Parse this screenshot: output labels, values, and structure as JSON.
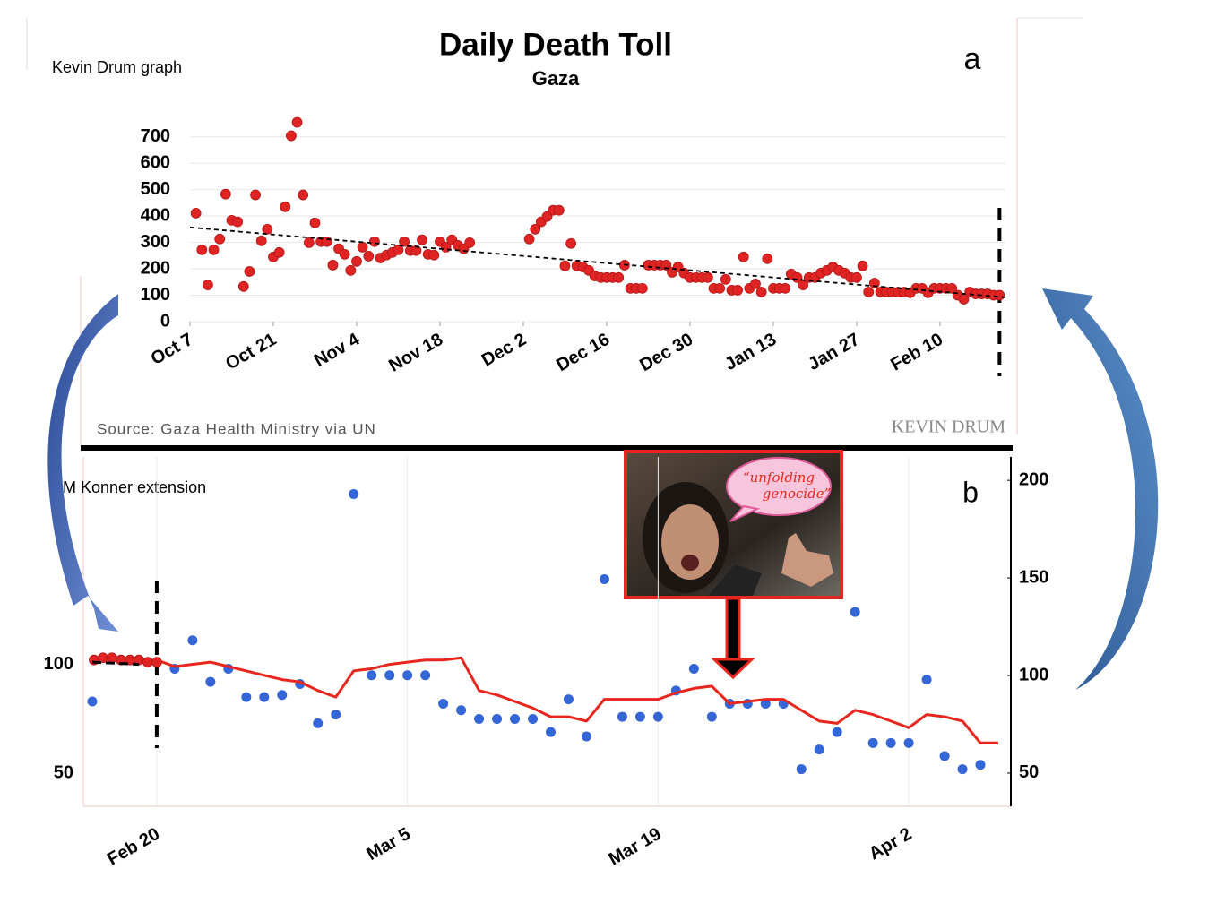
{
  "chart_data": [
    {
      "type": "scatter",
      "title": "Daily Death Toll",
      "subtitle": "Gaza",
      "panel_label": "a",
      "note": "Kevin Drum graph",
      "source": "Source: Gaza Health Ministry via UN",
      "watermark": "KEVIN DRUM",
      "xlim": [
        0,
        137
      ],
      "ylim": [
        0,
        750
      ],
      "xticks": [
        {
          "value": 0,
          "label": "Oct 7"
        },
        {
          "value": 14,
          "label": "Oct 21"
        },
        {
          "value": 28,
          "label": "Nov 4"
        },
        {
          "value": 42,
          "label": "Nov 18"
        },
        {
          "value": 56,
          "label": "Dec 2"
        },
        {
          "value": 70,
          "label": "Dec 16"
        },
        {
          "value": 84,
          "label": "Dec 30"
        },
        {
          "value": 98,
          "label": "Jan 13"
        },
        {
          "value": 112,
          "label": "Jan 27"
        },
        {
          "value": 126,
          "label": "Feb 10"
        }
      ],
      "yticks": [
        0,
        100,
        200,
        300,
        400,
        500,
        600,
        700
      ],
      "grid": true,
      "series": [
        {
          "type": "scatter",
          "color": "#e02424",
          "x": [
            1,
            2,
            3,
            4,
            5,
            6,
            7,
            8,
            9,
            10,
            11,
            12,
            13,
            14,
            15,
            16,
            17,
            18,
            19,
            20,
            21,
            22,
            23,
            24,
            25,
            26,
            27,
            28,
            29,
            30,
            31,
            32,
            33,
            34,
            35,
            36,
            37,
            38,
            39,
            40,
            41,
            42,
            43,
            44,
            45,
            46,
            47,
            57,
            58,
            59,
            60,
            61,
            62,
            63,
            64,
            65,
            66,
            67,
            68,
            69,
            70,
            71,
            72,
            73,
            74,
            75,
            76,
            77,
            78,
            79,
            80,
            81,
            82,
            83,
            84,
            85,
            86,
            87,
            88,
            89,
            90,
            91,
            92,
            93,
            94,
            95,
            96,
            97,
            98,
            99,
            100,
            101,
            102,
            103,
            104,
            105,
            106,
            107,
            108,
            109,
            110,
            111,
            112,
            113,
            114,
            115,
            116,
            117,
            118,
            119,
            120,
            121,
            122,
            123,
            124,
            125,
            126,
            127,
            128,
            129,
            130,
            131,
            132,
            133,
            134,
            135,
            136
          ],
          "values": [
            411,
            272,
            139,
            272,
            313,
            483,
            384,
            378,
            133,
            190,
            480,
            306,
            350,
            245,
            262,
            435,
            704,
            755,
            480,
            299,
            374,
            303,
            303,
            214,
            276,
            255,
            194,
            228,
            282,
            248,
            303,
            241,
            252,
            262,
            272,
            303,
            269,
            269,
            310,
            255,
            252,
            303,
            282,
            310,
            289,
            276,
            299,
            313,
            350,
            378,
            398,
            422,
            422,
            211,
            296,
            211,
            207,
            194,
            173,
            167,
            167,
            167,
            167,
            214,
            126,
            126,
            126,
            214,
            214,
            214,
            214,
            187,
            207,
            184,
            167,
            167,
            167,
            167,
            126,
            126,
            160,
            119,
            119,
            245,
            126,
            143,
            112,
            238,
            126,
            126,
            126,
            180,
            167,
            139,
            167,
            167,
            184,
            194,
            207,
            194,
            184,
            167,
            167,
            211,
            112,
            146,
            112,
            112,
            112,
            112,
            112,
            109,
            126,
            126,
            109,
            126,
            126,
            126,
            126,
            100,
            85,
            112,
            105,
            105,
            105,
            100,
            100
          ]
        }
      ],
      "trend": {
        "x": [
          0,
          137
        ],
        "values": [
          357,
          92
        ]
      },
      "reference_line": {
        "x": 136
      }
    },
    {
      "type": "combo",
      "panel_label": "b",
      "note": "M Konner extension",
      "annotation": "“unfolding genocide”",
      "xlim": [
        -4.1,
        47.7
      ],
      "ylim": [
        35,
        195
      ],
      "yticks": [
        50,
        100
      ],
      "y2lim": [
        33,
        212
      ],
      "y2ticks": [
        50,
        100,
        150,
        200
      ],
      "xticks": [
        {
          "value": 0,
          "label": "Feb 20"
        },
        {
          "value": 14,
          "label": "Mar 5"
        },
        {
          "value": 28,
          "label": "Mar 19"
        },
        {
          "value": 42,
          "label": "Apr 2"
        }
      ],
      "grid": true,
      "series": [
        {
          "type": "scatter",
          "color": "#3566d8",
          "x": [
            -3.6,
            0,
            1,
            2,
            3,
            4,
            5,
            6,
            7,
            8,
            9,
            10,
            11,
            12,
            13,
            14,
            15,
            16,
            17,
            18,
            19,
            20,
            21,
            22,
            23,
            24,
            25,
            26,
            27,
            28,
            29,
            30,
            31,
            32,
            33,
            34,
            35,
            36,
            37,
            38,
            39,
            40,
            41,
            42,
            43,
            44,
            45,
            46
          ],
          "values": [
            83,
            101,
            98,
            111,
            92,
            98,
            85,
            85,
            86,
            91,
            73,
            77,
            178,
            95,
            95,
            95,
            95,
            82,
            79,
            75,
            75,
            75,
            75,
            69,
            84,
            67,
            139,
            76,
            76,
            76,
            88,
            98,
            76,
            82,
            82,
            82,
            82,
            52,
            61,
            69,
            124,
            64,
            64,
            64,
            93,
            58,
            52,
            54
          ]
        },
        {
          "type": "line",
          "color": "#e8261e",
          "x": [
            0,
            1,
            3,
            4,
            5,
            6,
            7,
            8,
            9,
            10,
            11,
            12,
            13,
            14,
            15,
            16,
            17,
            18,
            19,
            20,
            21,
            22,
            23,
            24,
            25,
            26,
            27,
            28,
            29,
            30,
            31,
            32,
            33,
            34,
            35,
            36,
            37,
            38,
            39,
            40,
            41,
            42,
            43,
            44,
            45,
            46,
            47
          ],
          "values": [
            102,
            99,
            101,
            99,
            97,
            95,
            93,
            92,
            88,
            85,
            97,
            98,
            100,
            101,
            102,
            102,
            103,
            88,
            86,
            83,
            80,
            76,
            76,
            74,
            84,
            84,
            84,
            84,
            87,
            89,
            90,
            82,
            83,
            84,
            84,
            79,
            74,
            73,
            79,
            77,
            74,
            71,
            77,
            76,
            74,
            64,
            64
          ]
        },
        {
          "type": "scatter",
          "color": "#e02424",
          "x": [
            -3.5,
            -3,
            -2.5,
            -2,
            -1.5,
            -1,
            -0.5,
            0
          ],
          "values": [
            102,
            103,
            103,
            102,
            102,
            102,
            101,
            101
          ]
        }
      ],
      "trend": {
        "x": [
          -3.6,
          -1
        ],
        "values": [
          101,
          100
        ]
      },
      "reference_line": {
        "x": 0
      }
    }
  ]
}
